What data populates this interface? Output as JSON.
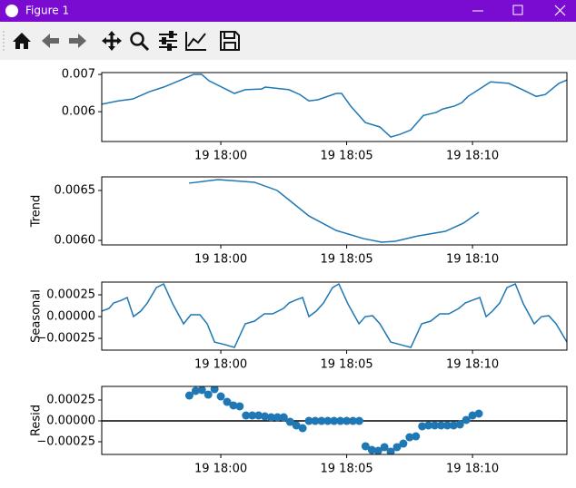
{
  "window": {
    "title": "Figure 1"
  },
  "chart_data": [
    {
      "type": "line",
      "color": "#1f77b4",
      "x": [
        -4.73,
        -4.08,
        -3.5,
        -2.82,
        -2.27,
        -1.66,
        -1.08,
        -0.76,
        -0.47,
        0.54,
        0.97,
        1.62,
        1.77,
        2.71,
        3.14,
        3.5,
        3.86,
        4.58,
        4.8,
        5.16,
        5.74,
        6.32,
        6.75,
        7.11,
        7.55,
        8.05,
        8.56,
        8.81,
        9.28,
        9.57,
        9.82,
        10.72,
        11.44,
        11.99,
        12.53,
        12.89,
        13.43,
        13.75
      ],
      "values": [
        0.0062,
        0.00629,
        0.00634,
        0.00654,
        0.00666,
        0.00683,
        0.007,
        0.007,
        0.00683,
        0.00649,
        0.00659,
        0.00661,
        0.00666,
        0.00659,
        0.00646,
        0.00629,
        0.00632,
        0.00649,
        0.00649,
        0.00615,
        0.00571,
        0.00559,
        0.00532,
        0.00539,
        0.00551,
        0.0059,
        0.00598,
        0.00607,
        0.00615,
        0.00624,
        0.00641,
        0.0068,
        0.00676,
        0.00659,
        0.00641,
        0.00646,
        0.00676,
        0.00685
      ],
      "xlim": [
        -4.73,
        13.75
      ],
      "xticks": [
        {
          "value": 0,
          "label": "19 18:00"
        },
        {
          "value": 5,
          "label": "19 18:05"
        },
        {
          "value": 10,
          "label": "19 18:10"
        }
      ],
      "ylim": [
        0.0052,
        0.00705
      ],
      "yticks": [
        0.006,
        0.007
      ]
    },
    {
      "type": "line",
      "color": "#1f77b4",
      "ylabel": "Trend",
      "x": [
        -1.26,
        -0.11,
        1.34,
        2.24,
        2.78,
        3.5,
        4.58,
        5.67,
        6.39,
        6.93,
        7.83,
        8.92,
        9.64,
        10.25
      ],
      "values": [
        0.006573,
        0.006609,
        0.006582,
        0.0065,
        0.006391,
        0.006245,
        0.0061,
        0.006018,
        0.005982,
        0.005991,
        0.006045,
        0.006091,
        0.006173,
        0.006282
      ],
      "xlim": [
        -4.73,
        13.75
      ],
      "xticks": [
        {
          "value": 0,
          "label": "19 18:00"
        },
        {
          "value": 5,
          "label": "19 18:05"
        },
        {
          "value": 10,
          "label": "19 18:10"
        }
      ],
      "ylim": [
        0.005955,
        0.006636
      ],
      "yticks": [
        {
          "value": 0.006,
          "label": "0.0060"
        },
        0.0065
      ]
    },
    {
      "type": "line",
      "color": "#1f77b4",
      "ylabel": "Seasonal",
      "x": [
        -4.73,
        -4.44,
        -4.26,
        -3.94,
        -3.72,
        -3.47,
        -3.18,
        -2.92,
        -2.56,
        -2.27,
        -1.91,
        -1.48,
        -1.19,
        -0.83,
        -0.54,
        -0.25,
        0.18,
        0.54,
        0.97,
        1.34,
        1.73,
        2.06,
        2.49,
        2.71,
        2.96,
        3.25,
        3.5,
        3.79,
        4.08,
        4.44,
        4.69,
        5.05,
        5.49,
        5.74,
        6.03,
        6.32,
        6.75,
        7.15,
        7.55,
        7.98,
        8.34,
        8.7,
        9.06,
        9.46,
        9.71,
        10,
        10.29,
        10.54,
        10.79,
        11.08,
        11.37,
        11.7,
        12.02,
        12.45,
        12.74,
        13.03,
        13.32,
        13.75
      ],
      "values": [
        6.25e-05,
        9.4e-05,
        0.000156,
        0.000188,
        0.000219,
        0,
        6.25e-05,
        0.000156,
        0.000333,
        0.000375,
        0.000146,
        -8.3e-05,
        2.1e-05,
        2.1e-05,
        -8.3e-05,
        -0.000292,
        -0.000323,
        -0.000354,
        -8.3e-05,
        -5.2e-05,
        3.1e-05,
        3.1e-05,
        9.4e-05,
        0.000156,
        0.000188,
        0.000219,
        0,
        6.25e-05,
        0.000156,
        0.000333,
        0.000375,
        0.000146,
        -8.3e-05,
        0,
        1e-05,
        -8.3e-05,
        -0.000292,
        -0.000323,
        -0.000354,
        -8.3e-05,
        -5.2e-05,
        3.1e-05,
        3.1e-05,
        9.4e-05,
        0.000156,
        0.000188,
        0.000219,
        0,
        6.25e-05,
        0.000156,
        0.000333,
        0.000375,
        0.000146,
        -8.3e-05,
        0,
        1e-05,
        -8.3e-05,
        -0.000292
      ],
      "xlim": [
        -4.73,
        13.75
      ],
      "xticks": [
        {
          "value": 0,
          "label": "19 18:00"
        },
        {
          "value": 5,
          "label": "19 18:05"
        },
        {
          "value": 10,
          "label": "19 18:10"
        }
      ],
      "ylim": [
        -0.000385,
        0.000396
      ],
      "yticks": [
        {
          "value": -0.00025,
          "label": "−0.00025"
        },
        {
          "value": 0,
          "label": "0.00000"
        },
        0.00025
      ]
    },
    {
      "type": "scatter",
      "color": "#1f77b4",
      "ylabel": "Resid",
      "hline": 0,
      "x": [
        -1.25,
        -1,
        -0.75,
        -0.5,
        -0.25,
        0,
        0.25,
        0.5,
        0.75,
        1,
        1.25,
        1.5,
        1.75,
        2,
        2.25,
        2.5,
        2.75,
        3,
        3.25,
        3.5,
        3.75,
        4,
        4.25,
        4.5,
        4.75,
        5,
        5.25,
        5.5,
        5.75,
        6,
        6.25,
        6.5,
        6.75,
        7,
        7.25,
        7.5,
        7.75,
        8,
        8.25,
        8.5,
        8.75,
        9,
        9.25,
        9.5,
        9.75,
        10,
        10.25
      ],
      "values": [
        0.000304,
        0.000359,
        0.00037,
        0.000315,
        0.00038,
        0.000293,
        0.000228,
        0.000185,
        0.000174,
        6.5e-05,
        6.5e-05,
        6.5e-05,
        5.4e-05,
        4.3e-05,
        4.3e-05,
        4.3e-05,
        -1.1e-05,
        -5.4e-05,
        -8.7e-05,
        0,
        0,
        0,
        0,
        0,
        0,
        0,
        0,
        0,
        -0.000304,
        -0.000348,
        -0.000359,
        -0.000315,
        -0.00037,
        -0.000315,
        -0.000272,
        -0.000196,
        -0.000185,
        -6.5e-05,
        -5.4e-05,
        -5.4e-05,
        -5.4e-05,
        -5.4e-05,
        -5.4e-05,
        -4.3e-05,
        1.1e-05,
        6.5e-05,
        8.7e-05
      ],
      "xlim": [
        -4.73,
        13.75
      ],
      "xticks": [
        {
          "value": 0,
          "label": "19 18:00"
        },
        {
          "value": 5,
          "label": "19 18:05"
        },
        {
          "value": 10,
          "label": "19 18:10"
        }
      ],
      "ylim": [
        -0.000402,
        0.000413
      ],
      "yticks": [
        {
          "value": -0.00025,
          "label": "−0.00025"
        },
        {
          "value": 0,
          "label": "0.00000"
        },
        0.00025
      ]
    }
  ]
}
